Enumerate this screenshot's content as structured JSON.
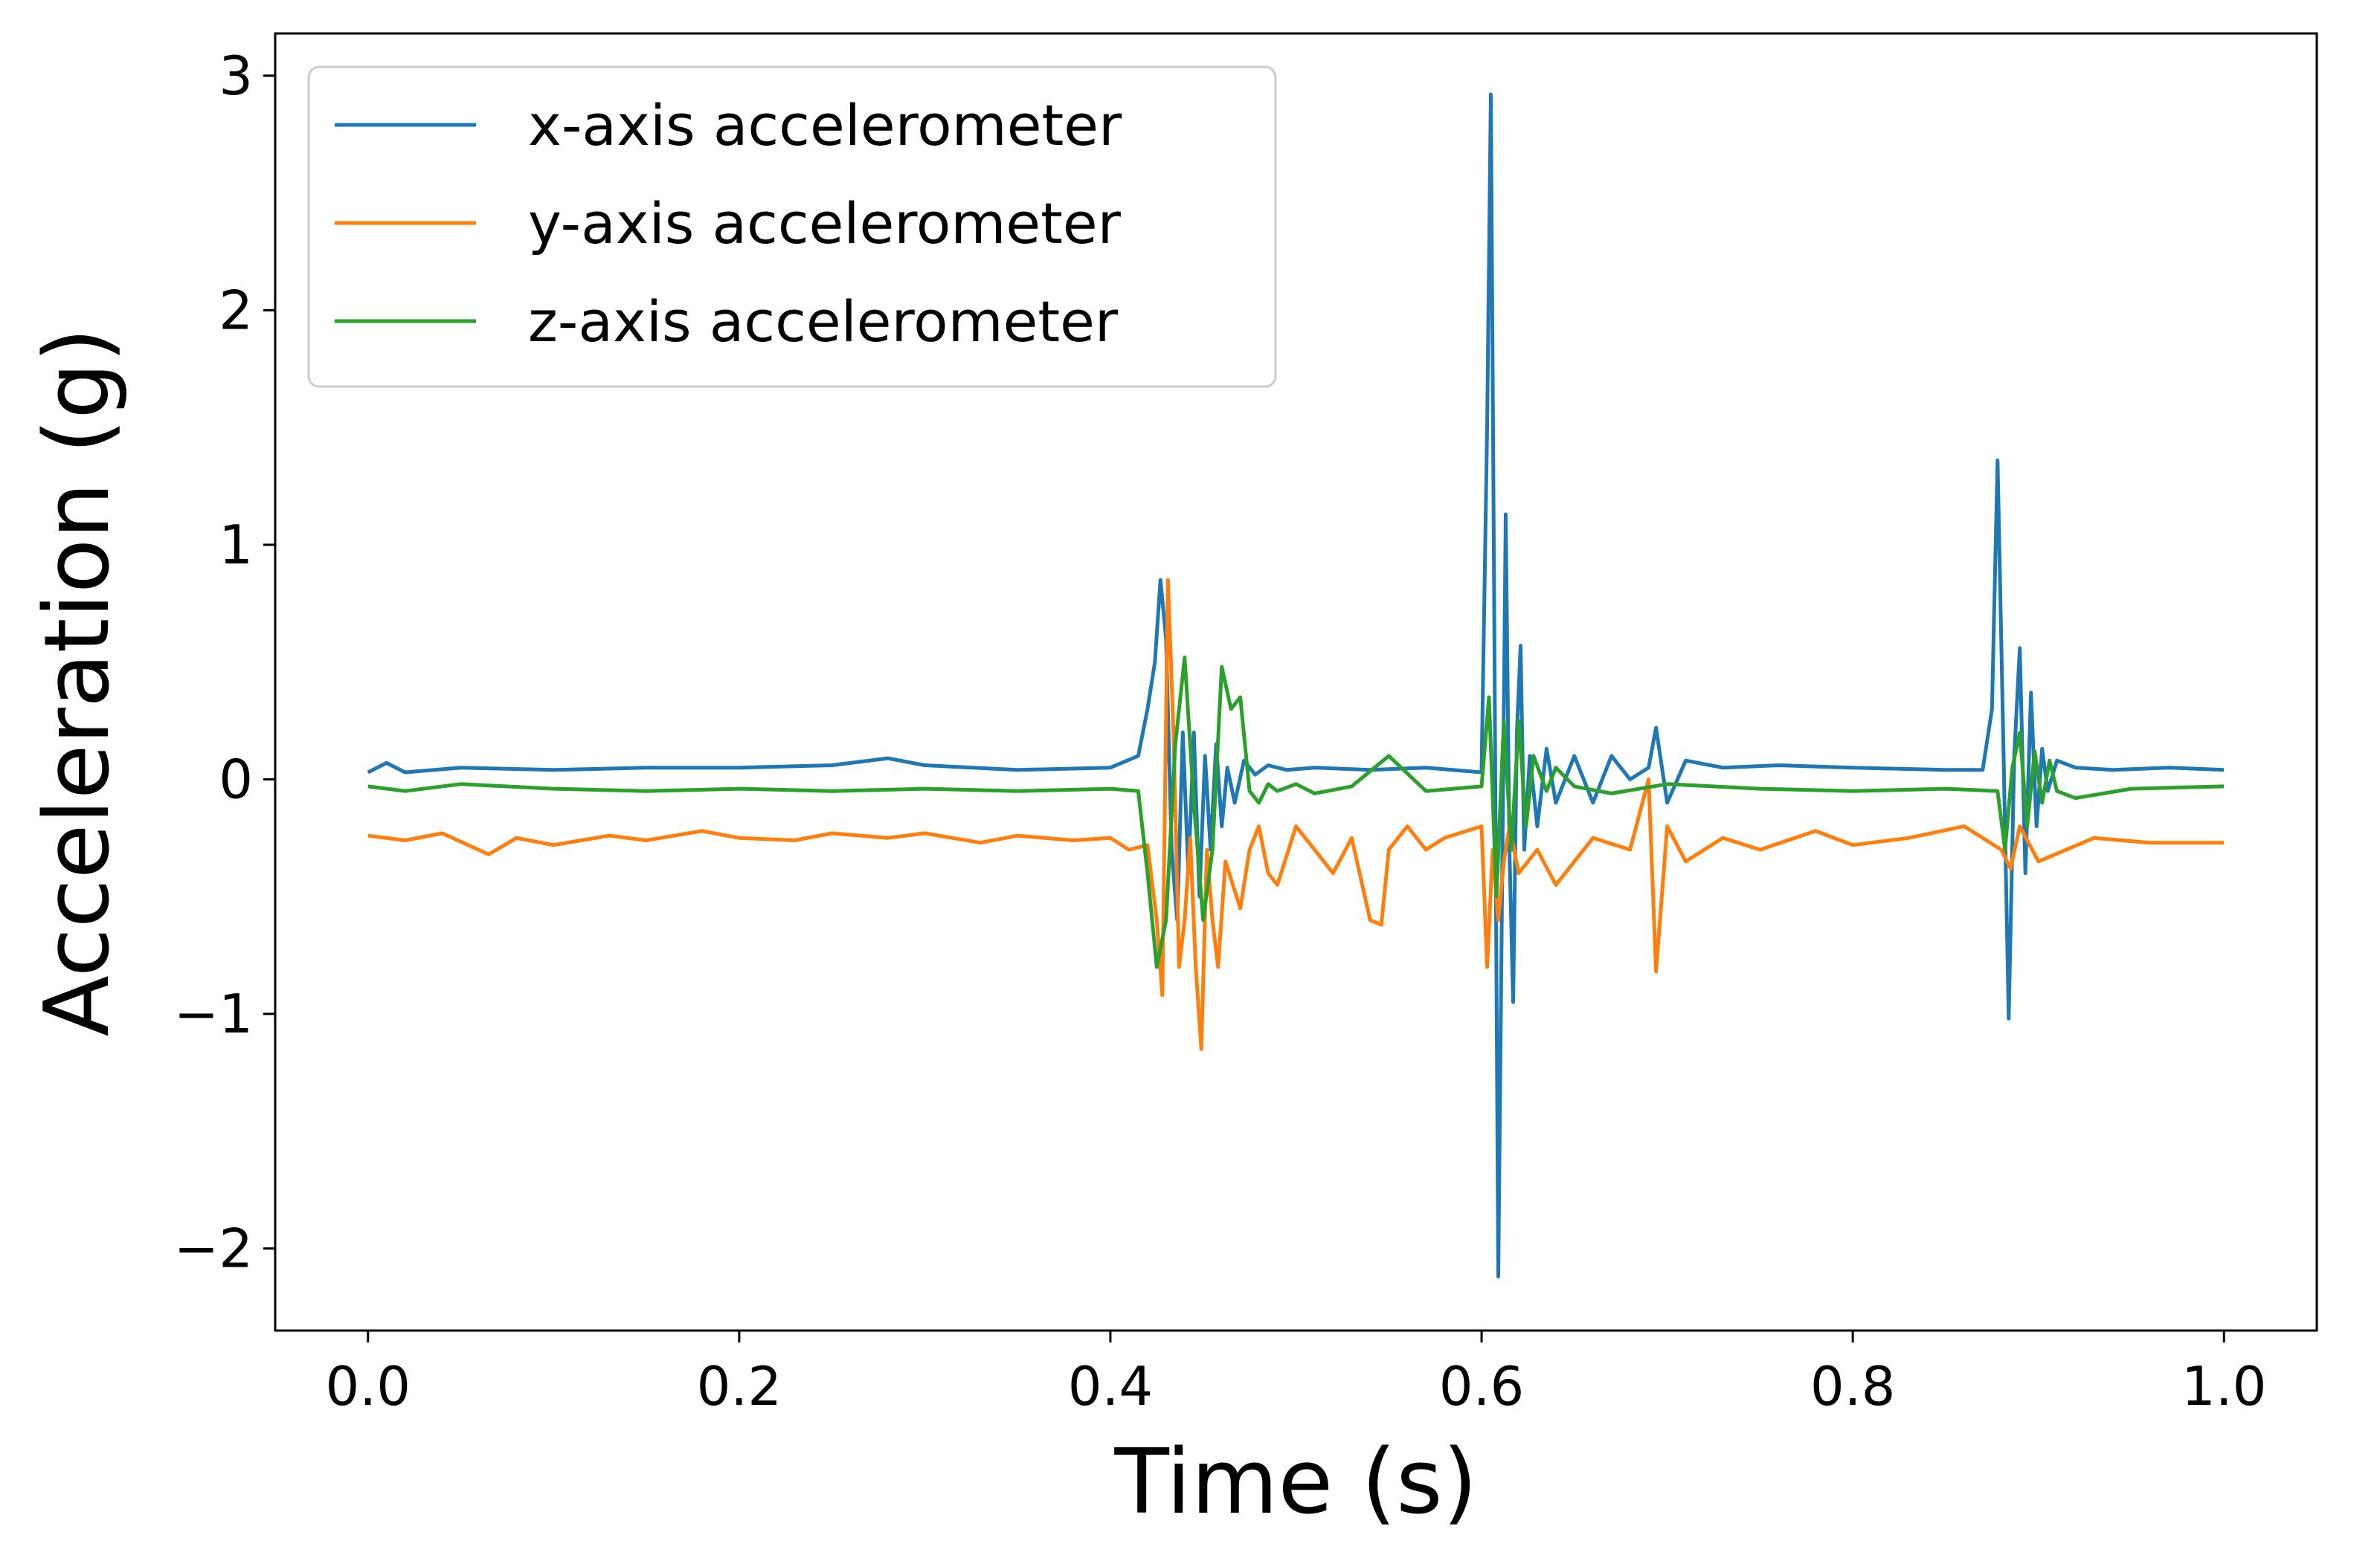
{
  "chart_data": {
    "type": "line",
    "title": "",
    "xlabel": "Time (s)",
    "ylabel": "Acceleration (g)",
    "xlim": [
      -0.05,
      1.05
    ],
    "ylim": [
      -2.35,
      3.18
    ],
    "xticks": [
      0.0,
      0.2,
      0.4,
      0.6,
      0.8,
      1.0
    ],
    "xtick_labels": [
      "0.0",
      "0.2",
      "0.4",
      "0.6",
      "0.8",
      "1.0"
    ],
    "yticks": [
      -2,
      -1,
      0,
      1,
      2,
      3
    ],
    "ytick_labels": [
      "−2",
      "−1",
      "0",
      "1",
      "2",
      "3"
    ],
    "grid": false,
    "legend_position": "top-left",
    "series": [
      {
        "name": "x-axis accelerometer",
        "color": "#1f77b4",
        "x": [
          0.0,
          0.01,
          0.02,
          0.05,
          0.1,
          0.15,
          0.2,
          0.25,
          0.28,
          0.3,
          0.35,
          0.4,
          0.415,
          0.42,
          0.424,
          0.427,
          0.43,
          0.433,
          0.436,
          0.439,
          0.442,
          0.445,
          0.448,
          0.451,
          0.454,
          0.457,
          0.46,
          0.463,
          0.467,
          0.472,
          0.478,
          0.485,
          0.495,
          0.51,
          0.54,
          0.57,
          0.6,
          0.603,
          0.605,
          0.607,
          0.609,
          0.611,
          0.613,
          0.615,
          0.617,
          0.619,
          0.621,
          0.623,
          0.626,
          0.63,
          0.635,
          0.64,
          0.65,
          0.66,
          0.67,
          0.68,
          0.69,
          0.694,
          0.7,
          0.71,
          0.73,
          0.76,
          0.8,
          0.85,
          0.87,
          0.875,
          0.878,
          0.881,
          0.884,
          0.887,
          0.89,
          0.893,
          0.896,
          0.899,
          0.902,
          0.905,
          0.91,
          0.92,
          0.94,
          0.97,
          1.0
        ],
        "y": [
          0.03,
          0.07,
          0.03,
          0.05,
          0.04,
          0.05,
          0.05,
          0.06,
          0.09,
          0.06,
          0.04,
          0.05,
          0.1,
          0.3,
          0.5,
          0.85,
          0.6,
          -0.3,
          -0.6,
          0.2,
          -0.4,
          0.2,
          -0.5,
          0.1,
          -0.3,
          0.15,
          -0.2,
          0.05,
          -0.1,
          0.08,
          0.02,
          0.06,
          0.04,
          0.05,
          0.04,
          0.05,
          0.03,
          1.5,
          2.92,
          0.5,
          -2.12,
          -0.5,
          1.13,
          -0.3,
          -0.95,
          0.2,
          0.57,
          -0.3,
          0.1,
          -0.2,
          0.13,
          -0.1,
          0.1,
          -0.1,
          0.1,
          0.0,
          0.05,
          0.22,
          -0.1,
          0.08,
          0.05,
          0.06,
          0.05,
          0.04,
          0.04,
          0.3,
          1.36,
          0.2,
          -1.02,
          0.1,
          0.56,
          -0.4,
          0.37,
          -0.2,
          0.13,
          -0.05,
          0.08,
          0.05,
          0.04,
          0.05,
          0.04
        ]
      },
      {
        "name": "y-axis accelerometer",
        "color": "#ff7f0e",
        "x": [
          0.0,
          0.02,
          0.04,
          0.065,
          0.08,
          0.1,
          0.13,
          0.15,
          0.18,
          0.2,
          0.23,
          0.25,
          0.28,
          0.3,
          0.33,
          0.35,
          0.38,
          0.4,
          0.41,
          0.42,
          0.425,
          0.428,
          0.431,
          0.434,
          0.437,
          0.44,
          0.443,
          0.446,
          0.449,
          0.452,
          0.455,
          0.458,
          0.462,
          0.466,
          0.47,
          0.475,
          0.48,
          0.485,
          0.49,
          0.5,
          0.51,
          0.52,
          0.53,
          0.54,
          0.546,
          0.55,
          0.56,
          0.57,
          0.58,
          0.6,
          0.603,
          0.606,
          0.609,
          0.612,
          0.615,
          0.62,
          0.63,
          0.64,
          0.66,
          0.68,
          0.69,
          0.694,
          0.7,
          0.71,
          0.73,
          0.75,
          0.78,
          0.8,
          0.83,
          0.86,
          0.88,
          0.885,
          0.89,
          0.9,
          0.93,
          0.96,
          1.0
        ],
        "y": [
          -0.24,
          -0.26,
          -0.23,
          -0.32,
          -0.25,
          -0.28,
          -0.24,
          -0.26,
          -0.22,
          -0.25,
          -0.26,
          -0.23,
          -0.25,
          -0.23,
          -0.27,
          -0.24,
          -0.26,
          -0.25,
          -0.3,
          -0.28,
          -0.6,
          -0.92,
          0.85,
          0.2,
          -0.8,
          -0.6,
          -0.25,
          -0.8,
          -1.15,
          -0.3,
          -0.6,
          -0.8,
          -0.35,
          -0.45,
          -0.55,
          -0.3,
          -0.2,
          -0.4,
          -0.45,
          -0.2,
          -0.3,
          -0.4,
          -0.25,
          -0.6,
          -0.62,
          -0.3,
          -0.2,
          -0.3,
          -0.25,
          -0.2,
          -0.8,
          -0.3,
          -0.6,
          -0.35,
          -0.2,
          -0.4,
          -0.3,
          -0.45,
          -0.25,
          -0.3,
          0.0,
          -0.82,
          -0.2,
          -0.35,
          -0.25,
          -0.3,
          -0.22,
          -0.28,
          -0.25,
          -0.2,
          -0.3,
          -0.38,
          -0.2,
          -0.35,
          -0.25,
          -0.27,
          -0.27
        ]
      },
      {
        "name": "z-axis accelerometer",
        "color": "#2ca02c",
        "x": [
          0.0,
          0.02,
          0.05,
          0.1,
          0.15,
          0.2,
          0.25,
          0.3,
          0.35,
          0.4,
          0.415,
          0.42,
          0.425,
          0.43,
          0.435,
          0.44,
          0.445,
          0.45,
          0.455,
          0.46,
          0.465,
          0.47,
          0.475,
          0.48,
          0.485,
          0.49,
          0.5,
          0.51,
          0.53,
          0.55,
          0.57,
          0.6,
          0.604,
          0.608,
          0.612,
          0.616,
          0.62,
          0.624,
          0.628,
          0.635,
          0.64,
          0.65,
          0.67,
          0.7,
          0.75,
          0.8,
          0.85,
          0.878,
          0.882,
          0.886,
          0.89,
          0.894,
          0.898,
          0.902,
          0.906,
          0.91,
          0.92,
          0.95,
          1.0
        ],
        "y": [
          -0.03,
          -0.05,
          -0.02,
          -0.04,
          -0.05,
          -0.04,
          -0.05,
          -0.04,
          -0.05,
          -0.04,
          -0.05,
          -0.4,
          -0.8,
          -0.6,
          0.15,
          0.52,
          -0.1,
          -0.6,
          -0.3,
          0.48,
          0.3,
          0.35,
          -0.05,
          -0.1,
          -0.02,
          -0.05,
          -0.02,
          -0.06,
          -0.03,
          0.1,
          -0.05,
          -0.03,
          0.35,
          -0.5,
          0.25,
          -0.3,
          0.25,
          -0.2,
          0.1,
          -0.05,
          0.05,
          -0.03,
          -0.06,
          -0.02,
          -0.04,
          -0.05,
          -0.04,
          -0.05,
          -0.3,
          0.05,
          0.2,
          -0.2,
          0.12,
          -0.1,
          0.08,
          -0.05,
          -0.08,
          -0.04,
          -0.03
        ]
      }
    ]
  }
}
